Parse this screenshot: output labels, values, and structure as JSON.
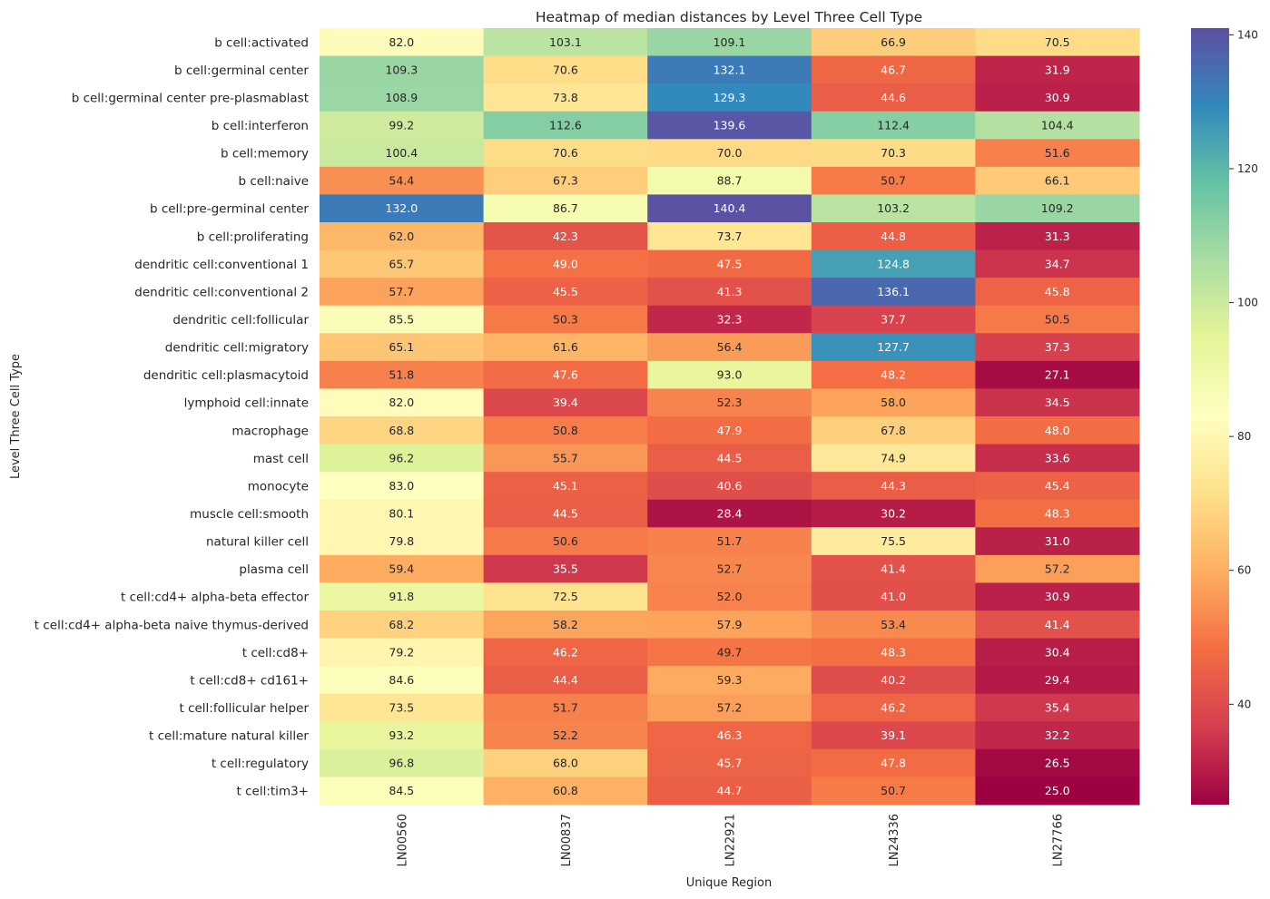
{
  "chart_data": {
    "type": "heatmap",
    "title": "Heatmap of median distances by Level Three Cell Type",
    "xlabel": "Unique Region",
    "ylabel": "Level Three Cell Type",
    "colormap": "Spectral",
    "color_range": [
      25.0,
      141.0
    ],
    "colorbar": {
      "ticks": [
        40,
        60,
        80,
        100,
        120,
        140
      ],
      "placement": "right"
    },
    "x_categories": [
      "LN00560",
      "LN00837",
      "LN22921",
      "LN24336",
      "LN27766"
    ],
    "y_categories": [
      "b cell:activated",
      "b cell:germinal center",
      "b cell:germinal center pre-plasmablast",
      "b cell:interferon",
      "b cell:memory",
      "b cell:naive",
      "b cell:pre-germinal center",
      "b cell:proliferating",
      "dendritic cell:conventional 1",
      "dendritic cell:conventional 2",
      "dendritic cell:follicular",
      "dendritic cell:migratory",
      "dendritic cell:plasmacytoid",
      "lymphoid cell:innate",
      "macrophage",
      "mast cell",
      "monocyte",
      "muscle cell:smooth",
      "natural killer cell",
      "plasma cell",
      "t cell:cd4+ alpha-beta effector",
      "t cell:cd4+ alpha-beta naive thymus-derived",
      "t cell:cd8+",
      "t cell:cd8+ cd161+",
      "t cell:follicular helper",
      "t cell:mature natural killer ",
      "t cell:regulatory",
      "t cell:tim3+"
    ],
    "values": [
      [
        82.0,
        103.1,
        109.1,
        66.9,
        70.5
      ],
      [
        109.3,
        70.6,
        132.1,
        46.7,
        31.9
      ],
      [
        108.9,
        73.8,
        129.3,
        44.6,
        30.9
      ],
      [
        99.2,
        112.6,
        139.6,
        112.4,
        104.4
      ],
      [
        100.4,
        70.6,
        70.0,
        70.3,
        51.6
      ],
      [
        54.4,
        67.3,
        88.7,
        50.7,
        66.1
      ],
      [
        132.0,
        86.7,
        140.4,
        103.2,
        109.2
      ],
      [
        62.0,
        42.3,
        73.7,
        44.8,
        31.3
      ],
      [
        65.7,
        49.0,
        47.5,
        124.8,
        34.7
      ],
      [
        57.7,
        45.5,
        41.3,
        136.1,
        45.8
      ],
      [
        85.5,
        50.3,
        32.3,
        37.7,
        50.5
      ],
      [
        65.1,
        61.6,
        56.4,
        127.7,
        37.3
      ],
      [
        51.8,
        47.6,
        93.0,
        48.2,
        27.1
      ],
      [
        82.0,
        39.4,
        52.3,
        58.0,
        34.5
      ],
      [
        68.8,
        50.8,
        47.9,
        67.8,
        48.0
      ],
      [
        96.2,
        55.7,
        44.5,
        74.9,
        33.6
      ],
      [
        83.0,
        45.1,
        40.6,
        44.3,
        45.4
      ],
      [
        80.1,
        44.5,
        28.4,
        30.2,
        48.3
      ],
      [
        79.8,
        50.6,
        51.7,
        75.5,
        31.0
      ],
      [
        59.4,
        35.5,
        52.7,
        41.4,
        57.2
      ],
      [
        91.8,
        72.5,
        52.0,
        41.0,
        30.9
      ],
      [
        68.2,
        58.2,
        57.9,
        53.4,
        41.4
      ],
      [
        79.2,
        46.2,
        49.7,
        48.3,
        30.4
      ],
      [
        84.6,
        44.4,
        59.3,
        40.2,
        29.4
      ],
      [
        73.5,
        51.7,
        57.2,
        46.2,
        35.4
      ],
      [
        93.2,
        52.2,
        46.3,
        39.1,
        32.2
      ],
      [
        96.8,
        68.0,
        45.7,
        47.8,
        26.5
      ],
      [
        84.5,
        60.8,
        44.7,
        50.7,
        25.0
      ]
    ],
    "annotation_format": "{:.1f}",
    "grid": false
  }
}
